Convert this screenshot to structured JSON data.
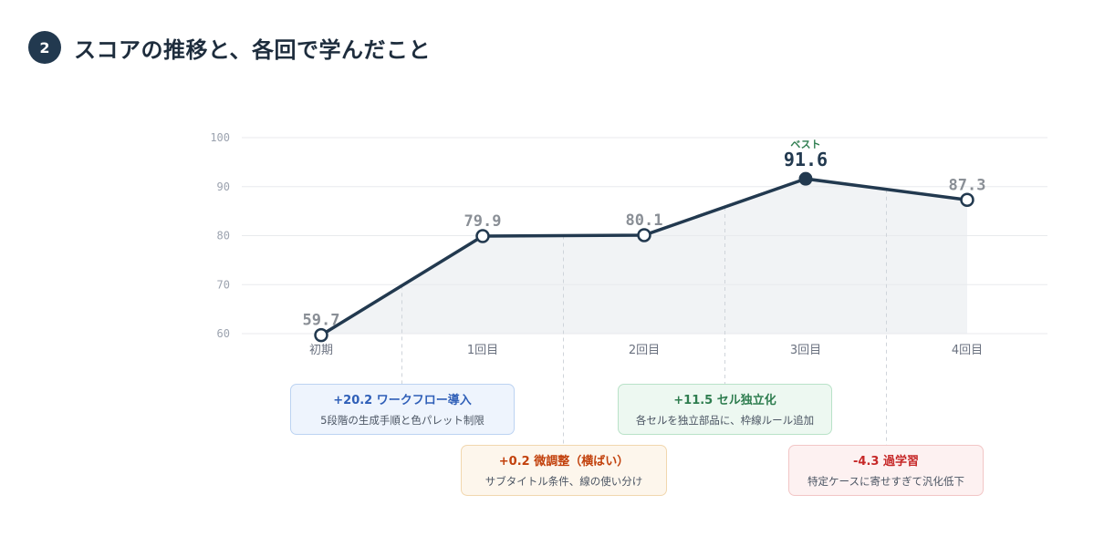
{
  "header": {
    "number": "2",
    "title": "スコアの推移と、各回で学んだこと"
  },
  "chart_data": {
    "type": "line",
    "categories": [
      "初期",
      "1回目",
      "2回目",
      "3回目",
      "4回目"
    ],
    "values": [
      59.7,
      79.9,
      80.1,
      91.6,
      87.3
    ],
    "value_labels": [
      "59.7",
      "79.9",
      "80.1",
      "91.6",
      "87.3"
    ],
    "ylim": [
      60,
      100
    ],
    "yticks": [
      "60",
      "70",
      "80",
      "90",
      "100"
    ],
    "best_index": 3,
    "best_label": "ベスト",
    "grid": true,
    "annotations": [
      {
        "between": [
          0,
          1
        ],
        "delta": "+20.2",
        "title": "ワークフロー導入",
        "desc": "5段階の生成手順と色パレット制限",
        "tone": "blue"
      },
      {
        "between": [
          1,
          2
        ],
        "delta": "+0.2",
        "title": "微調整（横ばい）",
        "desc": "サブタイトル条件、線の使い分け",
        "tone": "orange"
      },
      {
        "between": [
          2,
          3
        ],
        "delta": "+11.5",
        "title": "セル独立化",
        "desc": "各セルを独立部品に、枠線ルール追加",
        "tone": "green"
      },
      {
        "between": [
          3,
          4
        ],
        "delta": "-4.3",
        "title": "過学習",
        "desc": "特定ケースに寄せすぎて汎化低下",
        "tone": "red"
      }
    ],
    "colors": {
      "line": "#22394f",
      "area": "#f1f3f5",
      "grid": "#e8eaed",
      "blue": "#2f5fb8",
      "orange": "#c2410c",
      "green": "#2e7d4f",
      "red": "#c62828"
    }
  }
}
